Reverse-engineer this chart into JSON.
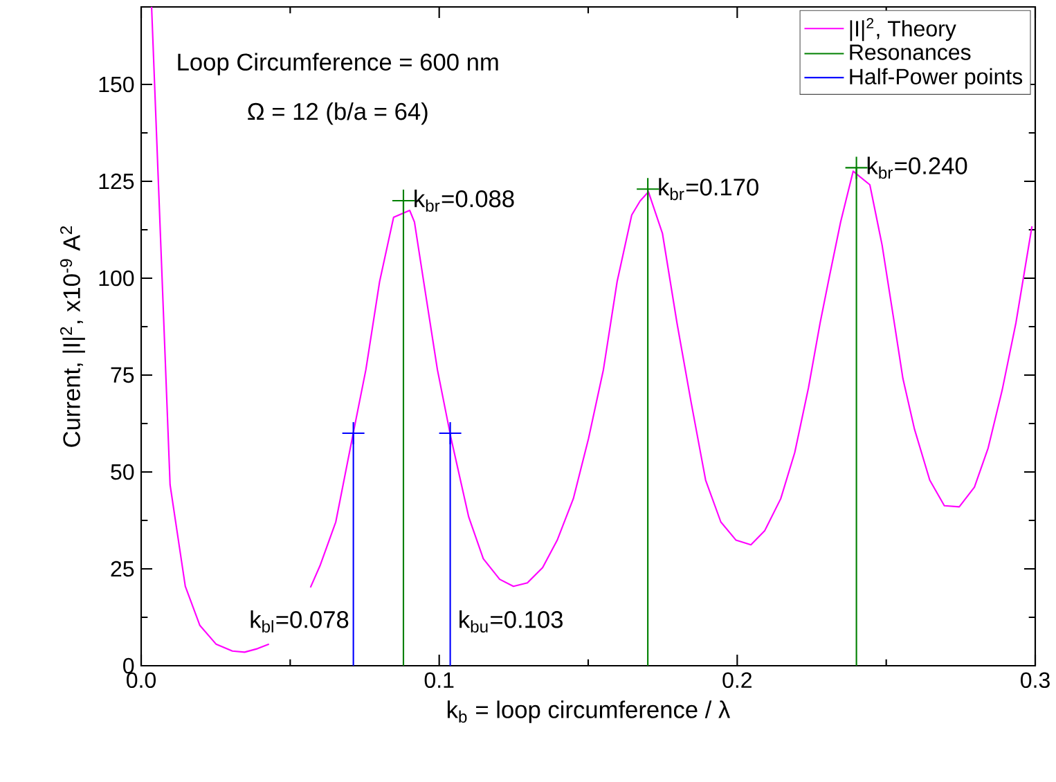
{
  "chart_data": {
    "type": "line",
    "xlabel": "k$_{b}$ = loop circumference / λ",
    "ylabel": "Current, |I|$^{2}$, x10$^{-9}$ A$^{2}$",
    "xlim": [
      0,
      0.3
    ],
    "ylim": [
      0,
      170
    ],
    "xticks": [
      {
        "value": 0,
        "label": "0.0"
      },
      {
        "value": 0.1,
        "label": "0.1"
      },
      {
        "value": 0.2,
        "label": "0.2"
      },
      {
        "value": 0.3,
        "label": "0.3"
      }
    ],
    "yticks": [
      0,
      25,
      50,
      75,
      100,
      125,
      150
    ],
    "grid": false,
    "legend": "top right",
    "series": [
      {
        "name": "|I|$^{2}$, Theory",
        "color": "#ff00ff",
        "marker": "none",
        "x": [
          0.0035,
          0.0097,
          0.0148,
          0.0197,
          0.0251,
          0.0306,
          0.0347,
          0.039,
          0.0429,
          0.05,
          0.0568,
          0.06,
          0.0653,
          0.0711,
          0.0754,
          0.08,
          0.0847,
          0.0901,
          0.0917,
          0.0948,
          0.0994,
          0.104,
          0.1099,
          0.1148,
          0.1203,
          0.1249,
          0.1296,
          0.1347,
          0.1396,
          0.145,
          0.1501,
          0.1551,
          0.1597,
          0.1646,
          0.1674,
          0.1702,
          0.1749,
          0.1798,
          0.1845,
          0.1894,
          0.1945,
          0.1996,
          0.2046,
          0.2092,
          0.2146,
          0.2193,
          0.2239,
          0.2278,
          0.2309,
          0.2347,
          0.2389,
          0.2445,
          0.2486,
          0.2525,
          0.2556,
          0.2595,
          0.2646,
          0.2695,
          0.2745,
          0.2796,
          0.2842,
          0.2889,
          0.2935,
          0.2989
        ],
        "values": [
          170,
          46.7,
          20.5,
          10.4,
          5.6,
          3.8,
          3.5,
          4.4,
          5.6,
          null,
          20.2,
          25.8,
          37.1,
          59.8,
          76.4,
          99.1,
          115.7,
          117.5,
          114.5,
          99.1,
          76.4,
          58.6,
          38.4,
          27.6,
          22.3,
          20.5,
          21.4,
          25.3,
          32.4,
          43.1,
          58.6,
          76.4,
          99.1,
          116.3,
          119.9,
          122.3,
          111.6,
          88.4,
          68.1,
          47.9,
          37.1,
          32.4,
          31.2,
          34.8,
          43.1,
          55,
          71.7,
          88.4,
          100.3,
          114.5,
          127.6,
          124.1,
          108.6,
          89.5,
          74.1,
          61,
          47.9,
          41.3,
          41,
          46.1,
          56.2,
          71.1,
          88.4,
          113.4
        ]
      },
      {
        "name": "Resonances",
        "color": "#008000",
        "type": "lollipop",
        "marker": "cross",
        "x": [
          0.088,
          0.17,
          0.24
        ],
        "values": [
          120,
          123,
          128.5
        ]
      },
      {
        "name": "Half-Power points",
        "color": "#0000ff",
        "type": "lollipop",
        "marker": "cross",
        "x": [
          0.0712,
          0.1037
        ],
        "values": [
          60,
          60
        ]
      }
    ],
    "annotations": [
      "Loop Circumference = 600 nm",
      "Ω = 12 (b/a = 64)",
      {
        "text": "k$_{br}$=0.088",
        "x": 0.088,
        "y": 120
      },
      {
        "text": "k$_{br}$=0.170",
        "x": 0.17,
        "y": 123
      },
      {
        "text": "k$_{br}$=0.240",
        "x": 0.24,
        "y": 128.5
      },
      "k$_{bl}$=0.078",
      "k$_{bu}$=0.103"
    ]
  }
}
